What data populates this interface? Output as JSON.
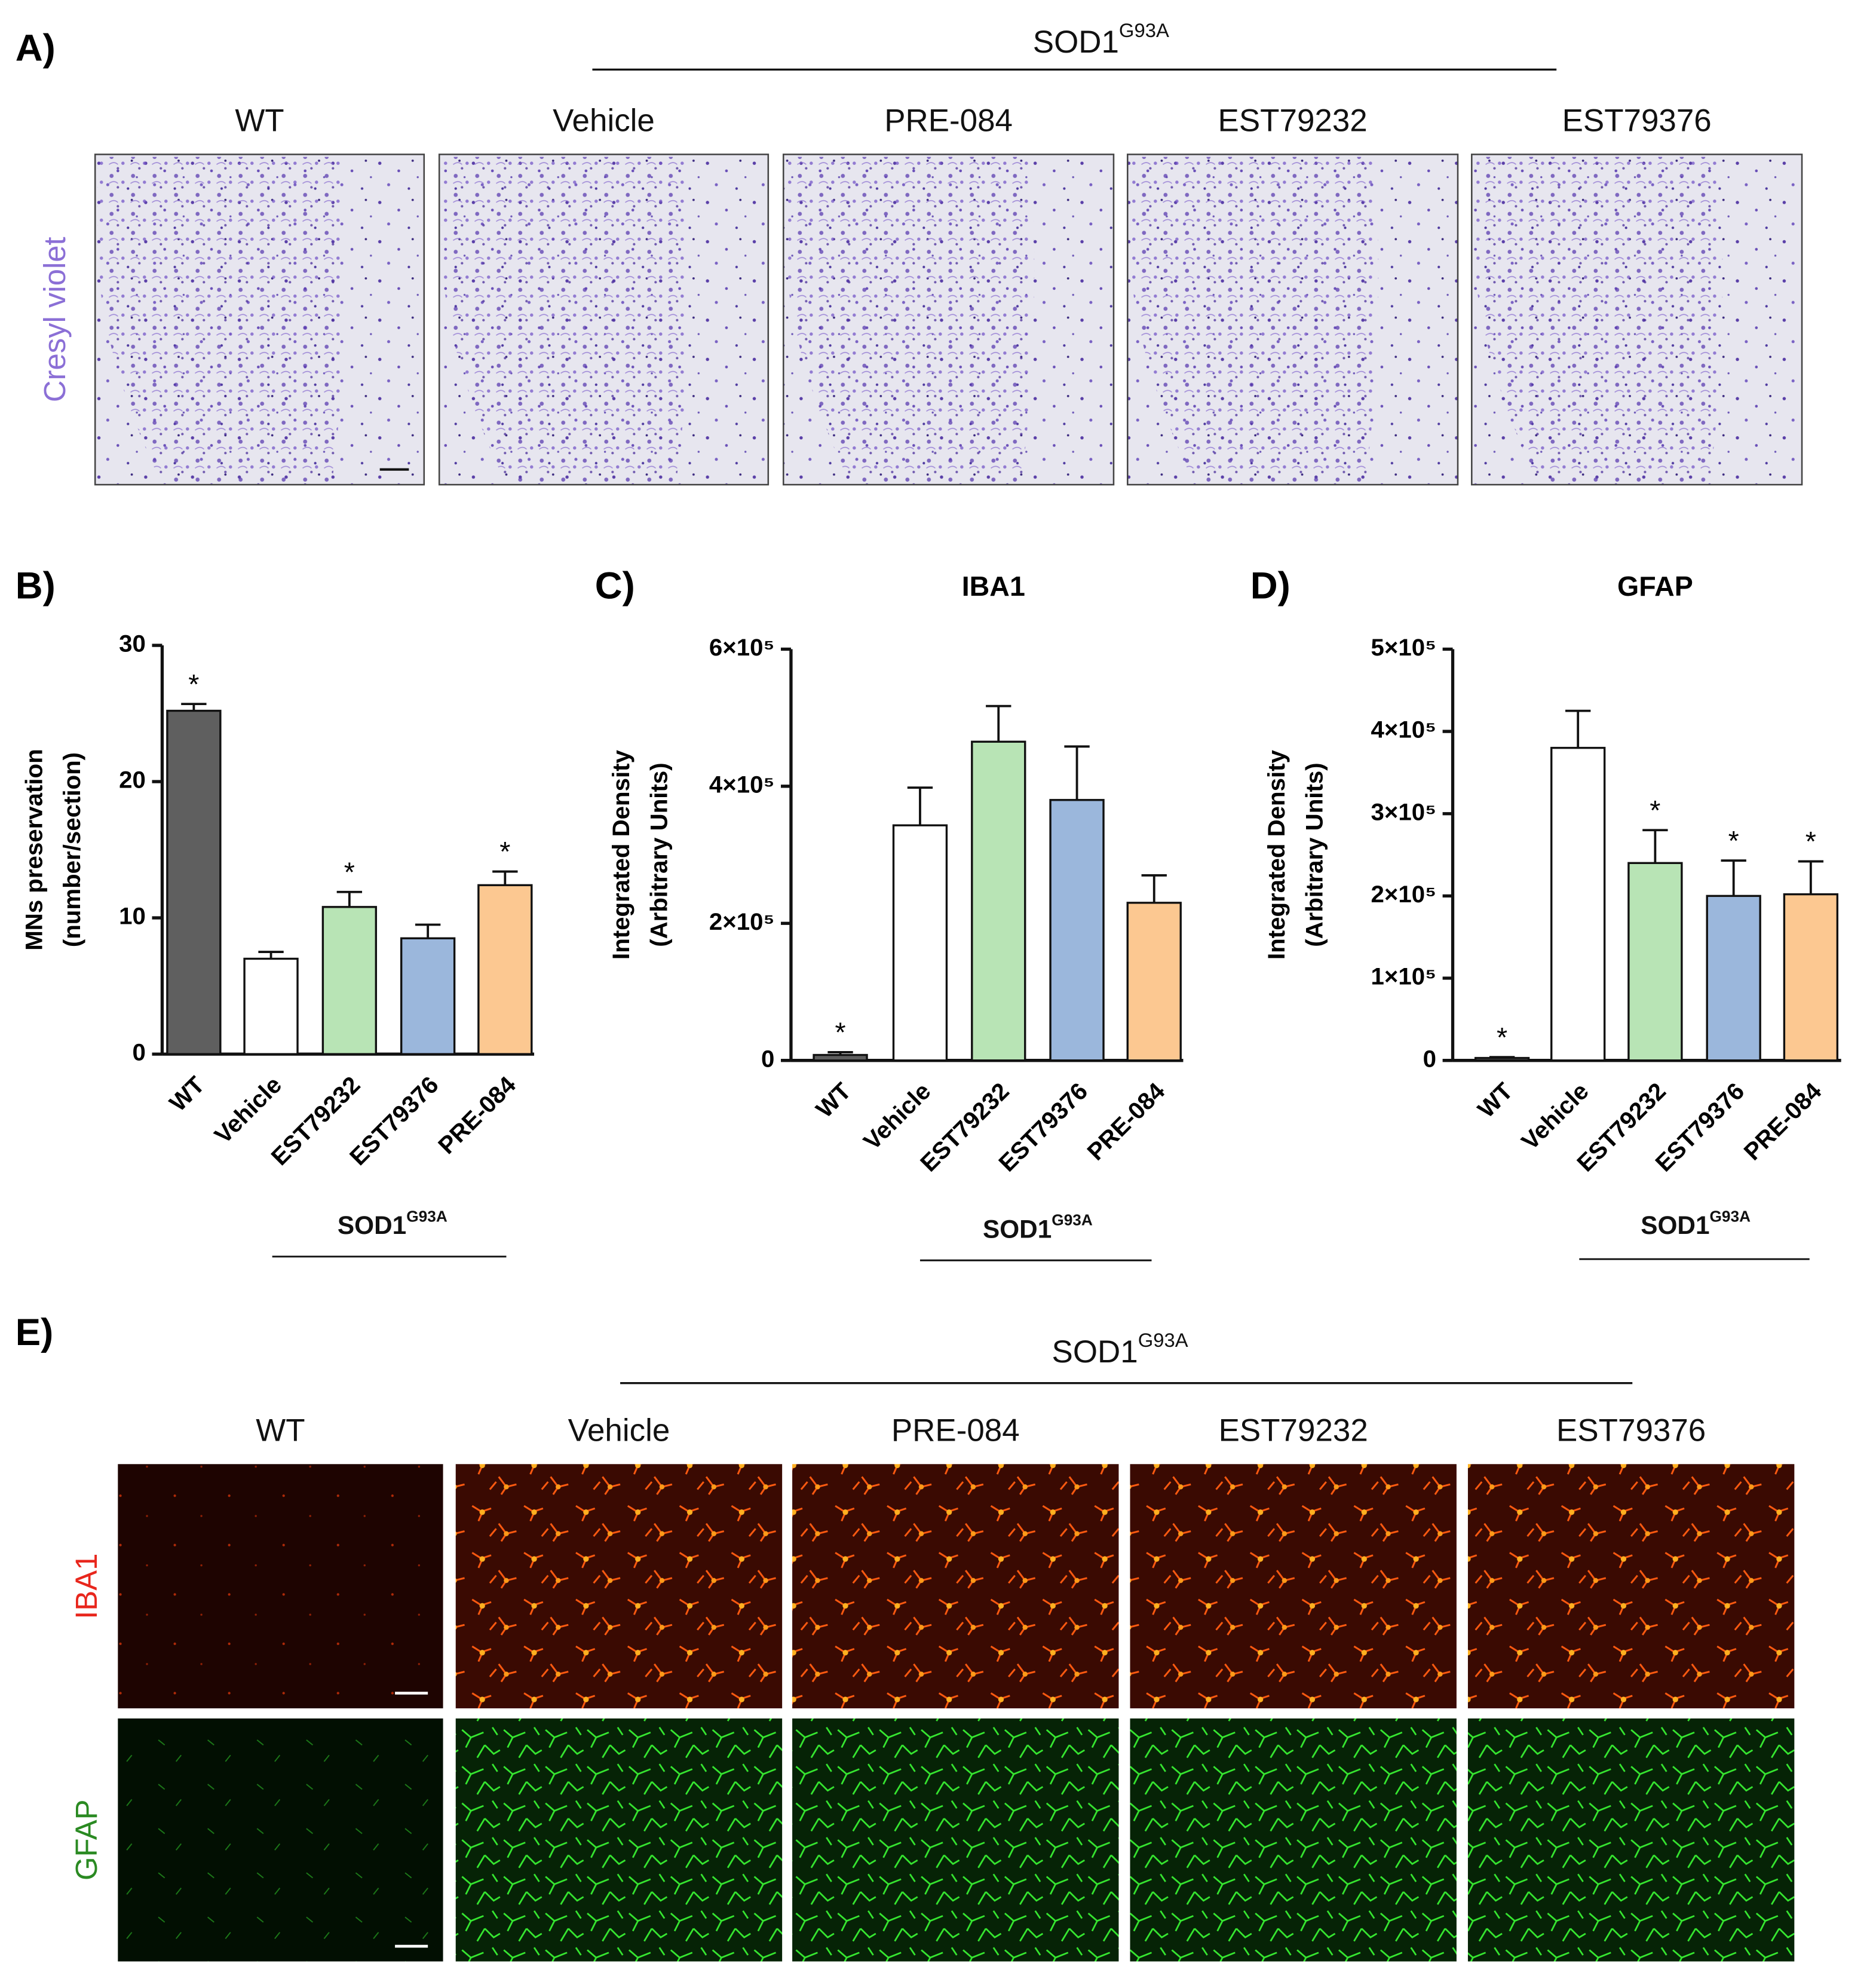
{
  "micrographs": {
    "A": {
      "label": "A)",
      "group": {
        "base": "SOD1",
        "sup": "G93A"
      },
      "columns": [
        "WT",
        "Vehicle",
        "PRE-084",
        "EST79232",
        "EST79376"
      ],
      "stains": [
        "Cresyl violet"
      ]
    },
    "E": {
      "label": "E)",
      "group": {
        "base": "SOD1",
        "sup": "G93A"
      },
      "columns": [
        "WT",
        "Vehicle",
        "PRE-084",
        "EST79232",
        "EST79376"
      ],
      "stains": [
        "IBA1",
        "GFAP"
      ]
    }
  },
  "chart_data": [
    {
      "type": "bar",
      "panel": "B)",
      "ylabel": [
        "MNs preservation",
        "(number/section)"
      ],
      "categories": [
        "WT",
        "Vehicle",
        "EST79232",
        "EST79376",
        "PRE-084"
      ],
      "values": [
        25.2,
        7.0,
        10.8,
        8.5,
        12.4
      ],
      "errors": [
        0.5,
        0.5,
        1.1,
        1.0,
        1.0
      ],
      "colors": [
        "#5f5f5f",
        "#ffffff",
        "#b8e4b5",
        "#9bb7dc",
        "#fcc891"
      ],
      "significance": [
        "*",
        null,
        "*",
        null,
        "*"
      ],
      "group_label": {
        "base": "SOD1",
        "sup": "G93A"
      },
      "ylim": [
        0,
        30
      ],
      "yticks": [
        0,
        10,
        20,
        30
      ]
    },
    {
      "type": "bar",
      "panel": "C)",
      "title": "IBA1",
      "ylabel": [
        "Integrated Density",
        "(Arbitrary Units)"
      ],
      "categories": [
        "WT",
        "Vehicle",
        "EST79232",
        "EST79376",
        "PRE-084"
      ],
      "values": [
        8000,
        343000,
        465000,
        380000,
        230000
      ],
      "errors": [
        4000,
        55000,
        52000,
        78000,
        40000
      ],
      "colors": [
        "#5f5f5f",
        "#ffffff",
        "#b8e4b5",
        "#9bb7dc",
        "#fcc891"
      ],
      "significance": [
        "*",
        null,
        null,
        null,
        null
      ],
      "group_label": {
        "base": "SOD1",
        "sup": "G93A"
      },
      "ylim": [
        0,
        600000
      ],
      "yticks": [
        0,
        {
          "value": 200000,
          "label": "2×10⁵"
        },
        {
          "value": 400000,
          "label": "4×10⁵"
        },
        {
          "value": 600000,
          "label": "6×10⁵"
        }
      ]
    },
    {
      "type": "bar",
      "panel": "D)",
      "title": "GFAP",
      "ylabel": [
        "Integrated Density",
        "(Arbitrary Units)"
      ],
      "categories": [
        "WT",
        "Vehicle",
        "EST79232",
        "EST79376",
        "PRE-084"
      ],
      "values": [
        3000,
        380000,
        240000,
        200000,
        202000
      ],
      "errors": [
        1000,
        45000,
        40000,
        43000,
        40000
      ],
      "colors": [
        "#5f5f5f",
        "#ffffff",
        "#b8e4b5",
        "#9bb7dc",
        "#fcc891"
      ],
      "significance": [
        "*",
        null,
        "*",
        "*",
        "*"
      ],
      "group_label": {
        "base": "SOD1",
        "sup": "G93A"
      },
      "ylim": [
        0,
        500000
      ],
      "yticks": [
        0,
        {
          "value": 100000,
          "label": "1×10⁵"
        },
        {
          "value": 200000,
          "label": "2×10⁵"
        },
        {
          "value": 300000,
          "label": "3×10⁵"
        },
        {
          "value": 400000,
          "label": "4×10⁵"
        },
        {
          "value": 500000,
          "label": "5×10⁵"
        }
      ]
    }
  ]
}
